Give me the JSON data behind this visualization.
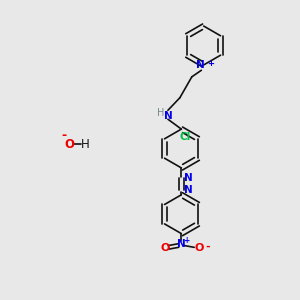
{
  "bg_color": "#e8e8e8",
  "bond_color": "#111111",
  "N_color": "#0000ee",
  "O_color": "#ee0000",
  "Cl_color": "#00bb44",
  "H_color": "#778888",
  "figsize": [
    3.0,
    3.0
  ],
  "dpi": 100,
  "xlim": [
    0,
    10
  ],
  "ylim": [
    0,
    10
  ]
}
